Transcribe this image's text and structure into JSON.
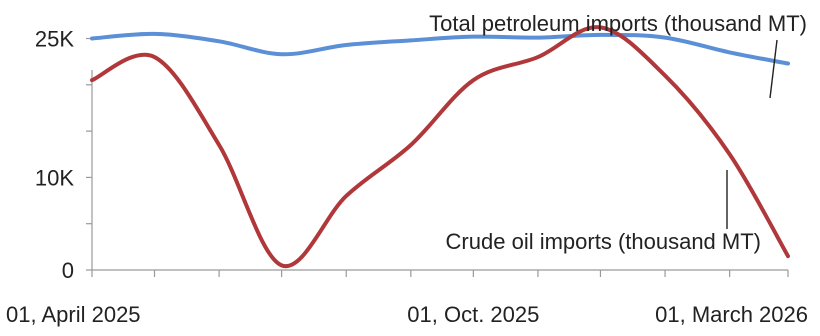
{
  "chart_data": {
    "type": "line",
    "title": "",
    "xlabel": "",
    "ylabel": "",
    "x": [
      "2025-04-01",
      "2025-05-01",
      "2025-06-01",
      "2025-07-01",
      "2025-08-01",
      "2025-09-01",
      "2025-10-01",
      "2025-11-01",
      "2025-12-01",
      "2026-01-01",
      "2026-02-01",
      "2026-03-01"
    ],
    "x_tick_labels": [
      "01, April 2025",
      "01, Oct. 2025",
      "01, March 2026"
    ],
    "x_tick_positions": [
      "2025-04-01",
      "2025-10-01",
      "2026-03-01"
    ],
    "y_ticks": [
      0,
      10000,
      25000
    ],
    "y_tick_labels": [
      "0",
      "10K",
      "25K"
    ],
    "ylim": [
      0,
      27000
    ],
    "grid": false,
    "series": [
      {
        "name": "Total petroleum imports (thousand MT)",
        "color": "#5b8fd6",
        "values": [
          25000,
          25500,
          24700,
          23300,
          24300,
          24800,
          25200,
          25100,
          25400,
          25100,
          23500,
          22300
        ]
      },
      {
        "name": "Crude oil imports (thousand MT)",
        "color": "#b0383a",
        "values": [
          20500,
          23000,
          13500,
          500,
          8000,
          13500,
          20500,
          23000,
          26200,
          21000,
          12500,
          1500
        ]
      }
    ]
  }
}
